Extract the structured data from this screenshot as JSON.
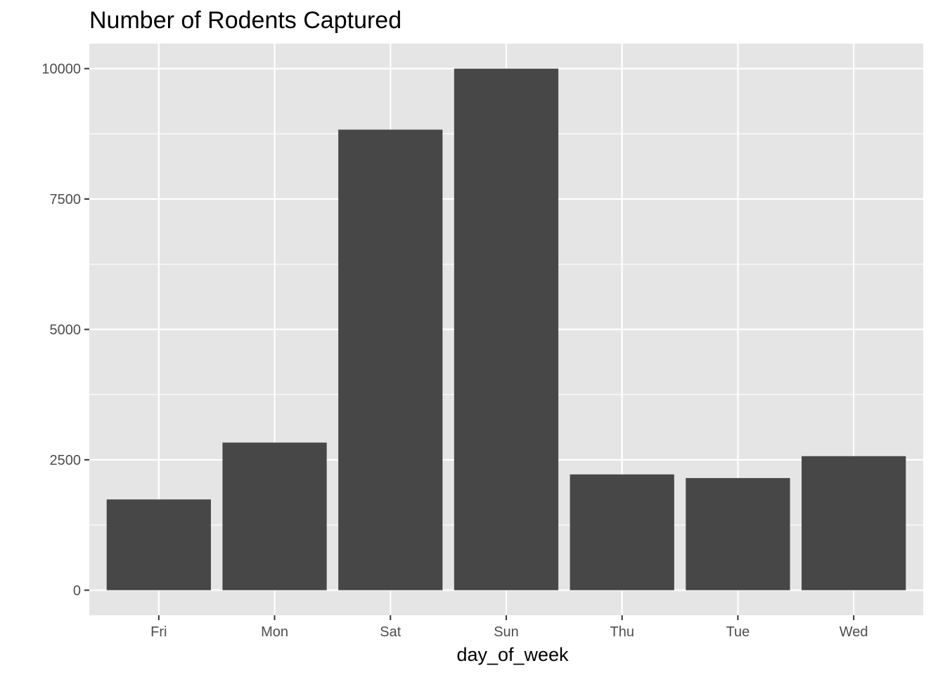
{
  "chart_data": {
    "type": "bar",
    "title": "Number of Rodents Captured",
    "xlabel": "day_of_week",
    "ylabel": "",
    "categories": [
      "Fri",
      "Mon",
      "Sat",
      "Sun",
      "Thu",
      "Tue",
      "Wed"
    ],
    "values": [
      1740,
      2830,
      8830,
      10000,
      2220,
      2150,
      2570
    ],
    "ylim": [
      -480,
      10480
    ],
    "yticks": [
      0,
      2500,
      5000,
      7500,
      10000
    ],
    "ytick_labels": [
      "0",
      "2500",
      "5000",
      "7500",
      "10000"
    ],
    "grid": true,
    "legend": "none",
    "colors": {
      "bar": "#474747",
      "panel_background": "#e5e5e5",
      "grid": "#ffffff",
      "tick": "#333333"
    }
  }
}
